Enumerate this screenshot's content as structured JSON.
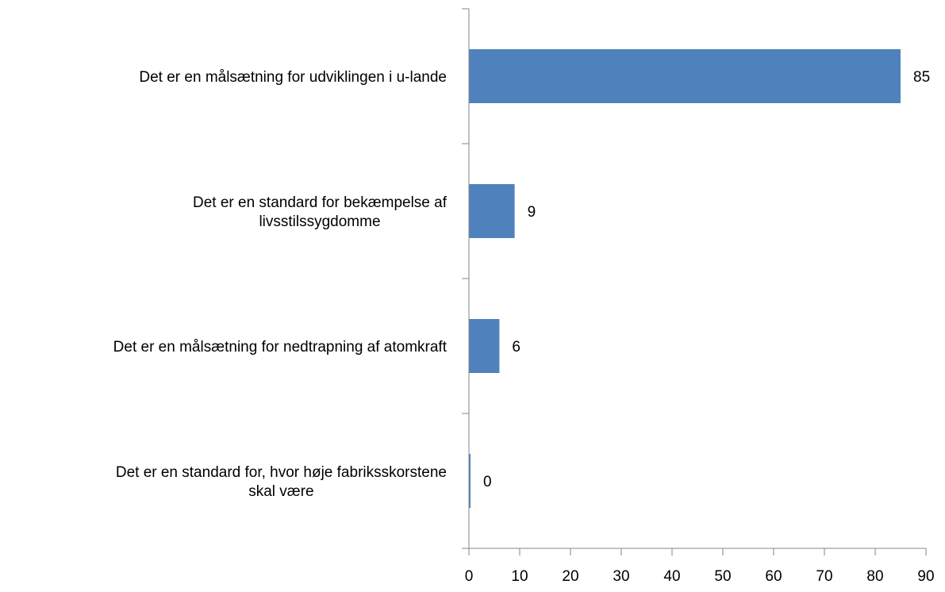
{
  "chart_data": {
    "type": "bar",
    "orientation": "horizontal",
    "categories": [
      [
        "Det er en målsætning for udviklingen i u-lande"
      ],
      [
        "Det er en standard for bekæmpelse af",
        "livsstilssygdomme"
      ],
      [
        "Det er en målsætning for nedtrapning af atomkraft"
      ],
      [
        "Det er en standard for, hvor høje fabriksskorstene",
        "skal være"
      ]
    ],
    "values": [
      85,
      9,
      6,
      0
    ],
    "data_labels": [
      "85",
      "9",
      "6",
      "0"
    ],
    "xlim": [
      0,
      90
    ],
    "xticks": [
      0,
      10,
      20,
      30,
      40,
      50,
      60,
      70,
      80,
      90
    ],
    "xtick_labels": [
      "0",
      "10",
      "20",
      "30",
      "40",
      "50",
      "60",
      "70",
      "80",
      "90"
    ],
    "title": "",
    "xlabel": "",
    "ylabel": "",
    "grid": false,
    "legend": "none",
    "colors": {
      "bar": "#4F81BD",
      "axis": "#868686",
      "text": "#000000"
    }
  }
}
